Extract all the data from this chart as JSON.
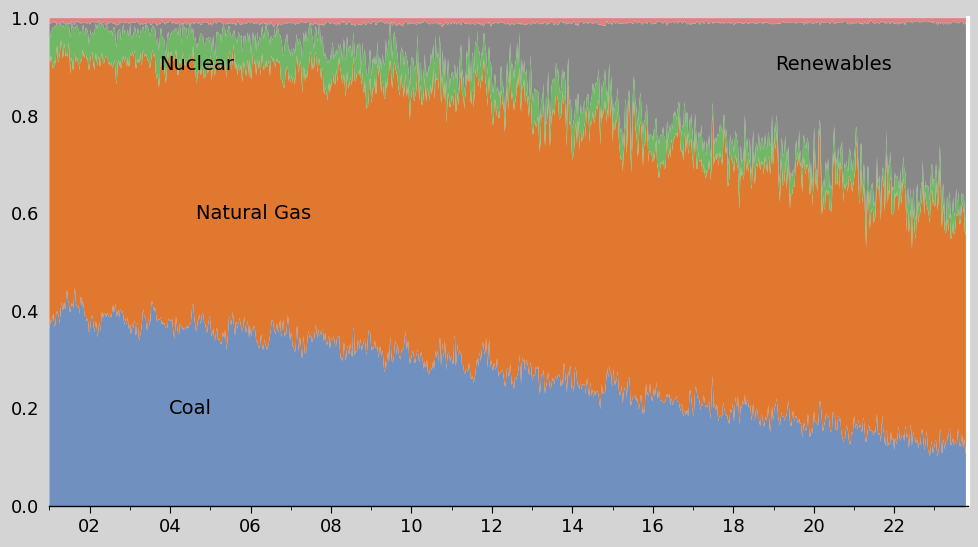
{
  "colors": {
    "coal": "#7090c0",
    "natural_gas": "#e07830",
    "nuclear": "#70b865",
    "renewables": "#888888",
    "other": "#e08080",
    "background": "#d4d4d4",
    "plot_bg": "#ffffff"
  },
  "labels": {
    "coal": "Coal",
    "natural_gas": "Natural Gas",
    "nuclear": "Nuclear",
    "renewables": "Renewables"
  },
  "ylim": [
    0,
    1.0
  ],
  "xtick_labels": [
    "02",
    "04",
    "06",
    "08",
    "10",
    "12",
    "14",
    "16",
    "18",
    "20",
    "22"
  ],
  "ytick_labels": [
    "0.0",
    "0.2",
    "0.4",
    "0.6",
    "0.8",
    "1.0"
  ],
  "start_year": 2001.0,
  "end_year": 2023.83
}
